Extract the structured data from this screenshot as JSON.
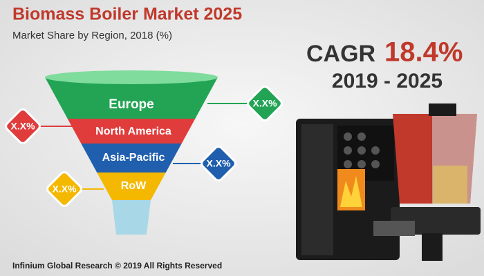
{
  "header": {
    "title": "Biomass Boiler Market 2025",
    "subtitle": "Market Share by Region, 2018 (%)"
  },
  "cagr": {
    "label": "CAGR",
    "value": "18.4%",
    "period": "2019 - 2025"
  },
  "funnel": {
    "segments": [
      {
        "label": "Europe",
        "share": "X.X%"
      },
      {
        "label": "North America",
        "share": "X.X%"
      },
      {
        "label": "Asia-Pacific",
        "share": "X.X%"
      },
      {
        "label": "RoW",
        "share": "X.X%"
      }
    ]
  },
  "footer": "Infinium Global Research © 2019 All Rights Reserved"
}
